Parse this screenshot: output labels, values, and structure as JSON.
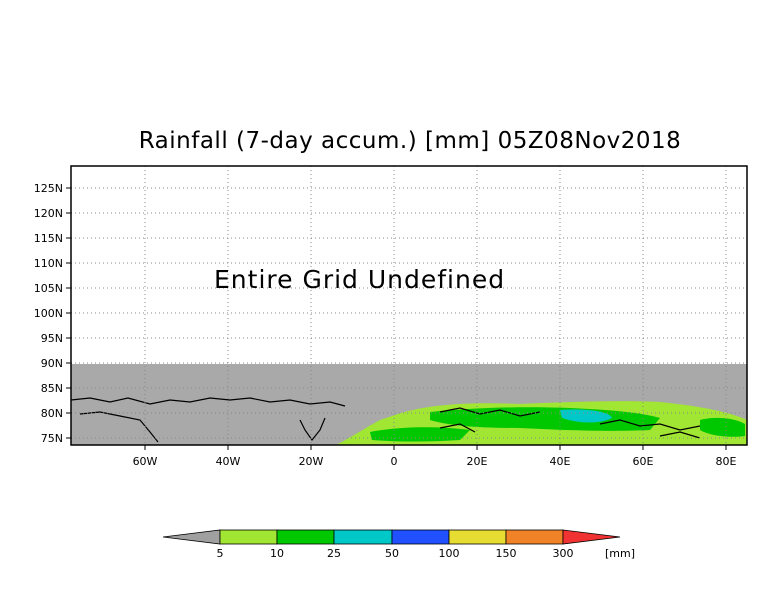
{
  "title": "Rainfall (7-day accum.) [mm] 05Z08Nov2018",
  "message": "Entire Grid Undefined",
  "lat_labels": [
    "125N",
    "120N",
    "115N",
    "110N",
    "105N",
    "100N",
    "95N",
    "90N",
    "85N",
    "80N",
    "75N"
  ],
  "lon_labels": [
    "60W",
    "40W",
    "20W",
    "0",
    "20E",
    "40E",
    "60E",
    "80E"
  ],
  "colorbar": {
    "labels": [
      "5",
      "10",
      "25",
      "50",
      "100",
      "150",
      "300"
    ],
    "unit": "[mm]",
    "colors": [
      "#a0a0a0",
      "#a0e632",
      "#00c800",
      "#00c8c8",
      "#2050ff",
      "#e6dc32",
      "#f08228",
      "#f03232"
    ]
  },
  "colors": {
    "undefined_gray": "#a9a9a9",
    "coastline": "#000000",
    "grid": "#888888"
  }
}
